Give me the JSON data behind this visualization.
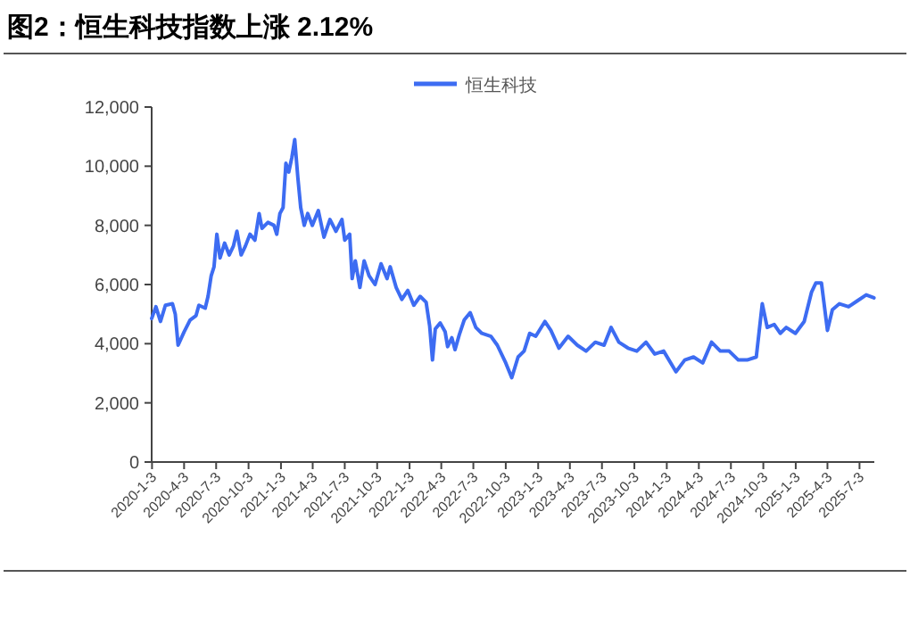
{
  "chart_data": {
    "type": "line",
    "title": "图2：恒生科技指数上涨 2.12%",
    "x": [
      "2020-01-02",
      "2020-01-14",
      "2020-01-27",
      "2020-02-10",
      "2020-03-01",
      "2020-03-09",
      "2020-03-17",
      "2020-04-03",
      "2020-04-20",
      "2020-05-07",
      "2020-05-15",
      "2020-06-02",
      "2020-06-10",
      "2020-06-19",
      "2020-06-27",
      "2020-07-05",
      "2020-07-14",
      "2020-07-27",
      "2020-08-09",
      "2020-08-21",
      "2020-08-31",
      "2020-09-12",
      "2020-09-24",
      "2020-10-07",
      "2020-10-21",
      "2020-11-02",
      "2020-11-10",
      "2020-11-27",
      "2020-12-14",
      "2020-12-22",
      "2020-12-31",
      "2021-01-09",
      "2021-01-17",
      "2021-01-25",
      "2021-02-03",
      "2021-02-11",
      "2021-02-20",
      "2021-02-28",
      "2021-03-10",
      "2021-03-20",
      "2021-04-02",
      "2021-04-19",
      "2021-05-05",
      "2021-05-22",
      "2021-06-08",
      "2021-06-25",
      "2021-07-03",
      "2021-07-17",
      "2021-07-24",
      "2021-08-02",
      "2021-08-15",
      "2021-08-27",
      "2021-09-10",
      "2021-09-27",
      "2021-10-14",
      "2021-10-31",
      "2021-11-09",
      "2021-11-26",
      "2021-12-12",
      "2021-12-29",
      "2022-01-15",
      "2022-02-02",
      "2022-02-19",
      "2022-03-01",
      "2022-03-09",
      "2022-03-17",
      "2022-03-31",
      "2022-04-14",
      "2022-04-21",
      "2022-05-03",
      "2022-05-12",
      "2022-05-24",
      "2022-06-07",
      "2022-06-24",
      "2022-07-10",
      "2022-07-27",
      "2022-08-22",
      "2022-09-09",
      "2022-10-03",
      "2022-10-20",
      "2022-11-07",
      "2022-11-24",
      "2022-12-10",
      "2022-12-27",
      "2023-01-22",
      "2023-02-08",
      "2023-03-03",
      "2023-03-29",
      "2023-04-24",
      "2023-05-19",
      "2023-06-14",
      "2023-07-09",
      "2023-07-29",
      "2023-08-20",
      "2023-09-15",
      "2023-10-10",
      "2023-11-05",
      "2023-11-30",
      "2023-12-25",
      "2024-01-29",
      "2024-02-23",
      "2024-03-19",
      "2024-04-14",
      "2024-05-09",
      "2024-06-03",
      "2024-06-28",
      "2024-07-24",
      "2024-08-18",
      "2024-09-13",
      "2024-09-30",
      "2024-10-14",
      "2024-11-03",
      "2024-11-20",
      "2024-12-07",
      "2025-01-02",
      "2025-01-27",
      "2025-02-17",
      "2025-03-01",
      "2025-03-17",
      "2025-04-03",
      "2025-04-17",
      "2025-05-07",
      "2025-06-02",
      "2025-06-27",
      "2025-07-22",
      "2025-08-13"
    ],
    "series": [
      {
        "name": "恒生科技",
        "color": "#3d6cf2",
        "values": [
          4850,
          5250,
          4750,
          5300,
          5350,
          5000,
          3950,
          4400,
          4800,
          4950,
          5300,
          5200,
          5600,
          6300,
          6600,
          7700,
          6900,
          7400,
          7000,
          7300,
          7800,
          7000,
          7300,
          7700,
          7500,
          8400,
          7900,
          8100,
          8000,
          7700,
          8400,
          8600,
          10100,
          9800,
          10300,
          10900,
          9600,
          8600,
          8000,
          8400,
          8000,
          8500,
          7600,
          8200,
          7800,
          8200,
          7500,
          7700,
          6200,
          6800,
          5900,
          6800,
          6300,
          6000,
          6700,
          6200,
          6600,
          5900,
          5500,
          5800,
          5300,
          5600,
          5400,
          4600,
          3450,
          4500,
          4700,
          4400,
          3900,
          4200,
          3800,
          4300,
          4800,
          5050,
          4550,
          4350,
          4250,
          3950,
          3350,
          2850,
          3550,
          3750,
          4350,
          4250,
          4750,
          4450,
          3850,
          4250,
          3950,
          3750,
          4050,
          3950,
          4550,
          4050,
          3850,
          3750,
          4050,
          3650,
          3750,
          3050,
          3450,
          3550,
          3350,
          4050,
          3750,
          3750,
          3450,
          3450,
          3550,
          5350,
          4550,
          4650,
          4350,
          4550,
          4350,
          4750,
          5750,
          6050,
          6050,
          4450,
          5150,
          5350,
          5250,
          5450,
          5650,
          5550
        ]
      }
    ],
    "xlim": [
      "2020-01-02",
      "2025-08-14"
    ],
    "xticks": [
      {
        "value": "2020-01-03",
        "label": "2020-1-3"
      },
      {
        "value": "2020-04-03",
        "label": "2020-4-3"
      },
      {
        "value": "2020-07-03",
        "label": "2020-7-3"
      },
      {
        "value": "2020-10-03",
        "label": "2020-10-3"
      },
      {
        "value": "2021-01-03",
        "label": "2021-1-3"
      },
      {
        "value": "2021-04-03",
        "label": "2021-4-3"
      },
      {
        "value": "2021-07-03",
        "label": "2021-7-3"
      },
      {
        "value": "2021-10-03",
        "label": "2021-10-3"
      },
      {
        "value": "2022-01-03",
        "label": "2022-1-3"
      },
      {
        "value": "2022-04-03",
        "label": "2022-4-3"
      },
      {
        "value": "2022-07-03",
        "label": "2022-7-3"
      },
      {
        "value": "2022-10-03",
        "label": "2022-10-3"
      },
      {
        "value": "2023-01-03",
        "label": "2023-1-3"
      },
      {
        "value": "2023-04-03",
        "label": "2023-4-3"
      },
      {
        "value": "2023-07-03",
        "label": "2023-7-3"
      },
      {
        "value": "2023-10-03",
        "label": "2023-10-3"
      },
      {
        "value": "2024-01-03",
        "label": "2024-1-3"
      },
      {
        "value": "2024-04-03",
        "label": "2024-4-3"
      },
      {
        "value": "2024-07-03",
        "label": "2024-7-3"
      },
      {
        "value": "2024-10-03",
        "label": "2024-10-3"
      },
      {
        "value": "2025-01-03",
        "label": "2025-1-3"
      },
      {
        "value": "2025-04-03",
        "label": "2025-4-3"
      },
      {
        "value": "2025-07-03",
        "label": "2025-7-3"
      }
    ],
    "ylim": [
      0,
      12000
    ],
    "yticks": [
      0,
      {
        "value": 2000,
        "label": "2,000"
      },
      {
        "value": 4000,
        "label": "4,000"
      },
      {
        "value": 6000,
        "label": "6,000"
      },
      {
        "value": 8000,
        "label": "8,000"
      },
      {
        "value": 10000,
        "label": "10,000"
      },
      {
        "value": 12000,
        "label": "12,000"
      }
    ],
    "legend": "top",
    "grid": false,
    "line_style": "solid",
    "marker": "none"
  }
}
